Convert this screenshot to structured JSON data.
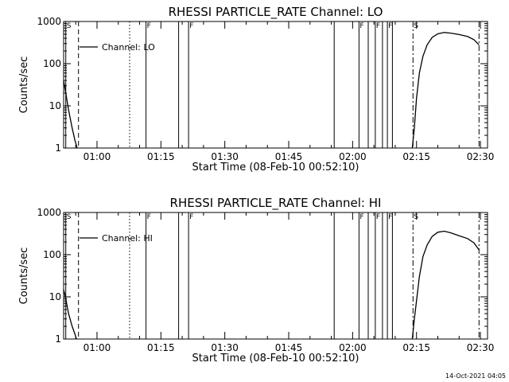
{
  "timestamp": "14-Oct-2021 04:05",
  "chart_data": [
    {
      "type": "line",
      "title": "RHESSI PARTICLE_RATE Channel: LO",
      "xlabel": "Start Time (08-Feb-10 00:52:10)",
      "ylabel": "Counts/sec",
      "y_scale": "log",
      "ylim": [
        1,
        1000
      ],
      "y_ticks": [
        1,
        10,
        100,
        1000
      ],
      "y_tick_labels": [
        "1",
        "10",
        "100",
        "1000"
      ],
      "x_range": [
        "00:52:10",
        "02:31:40"
      ],
      "x_ticks": [
        "01:00",
        "01:15",
        "01:30",
        "01:45",
        "02:00",
        "02:15",
        "02:30"
      ],
      "legend": {
        "label": "Channel: LO",
        "placement": "top-left"
      },
      "series": [
        {
          "name": "Channel: LO",
          "segments": [
            [
              [
                "00:52:10",
                40
              ],
              [
                "00:52:40",
                20
              ],
              [
                "00:53:20",
                8
              ],
              [
                "00:54:10",
                3
              ],
              [
                "00:54:50",
                1.5
              ],
              [
                "00:55:20",
                1
              ]
            ],
            [
              [
                "02:14:00",
                1
              ],
              [
                "02:14:30",
                3
              ],
              [
                "02:15:00",
                15
              ],
              [
                "02:15:40",
                60
              ],
              [
                "02:16:30",
                150
              ],
              [
                "02:17:30",
                280
              ],
              [
                "02:18:40",
                420
              ],
              [
                "02:20:00",
                510
              ],
              [
                "02:21:30",
                550
              ],
              [
                "02:23:00",
                530
              ],
              [
                "02:25:00",
                490
              ],
              [
                "02:27:00",
                440
              ],
              [
                "02:28:30",
                370
              ],
              [
                "02:29:40",
                280
              ]
            ]
          ]
        }
      ],
      "markers": [
        {
          "time": "00:52:40",
          "style": "solid",
          "label": "S"
        },
        {
          "time": "00:55:40",
          "style": "dashed",
          "label": ""
        },
        {
          "time": "01:07:40",
          "style": "dotted",
          "label": ""
        },
        {
          "time": "01:11:30",
          "style": "solid",
          "label": "F"
        },
        {
          "time": "01:19:10",
          "style": "solid",
          "label": ""
        },
        {
          "time": "01:21:30",
          "style": "solid",
          "label": "F"
        },
        {
          "time": "01:55:40",
          "style": "solid",
          "label": ""
        },
        {
          "time": "02:01:30",
          "style": "solid",
          "label": "F"
        },
        {
          "time": "02:03:40",
          "style": "solid",
          "label": ""
        },
        {
          "time": "02:05:20",
          "style": "solid",
          "label": "F"
        },
        {
          "time": "02:07:00",
          "style": "solid",
          "label": ""
        },
        {
          "time": "02:08:10",
          "style": "solid",
          "label": "F"
        },
        {
          "time": "02:09:20",
          "style": "solid",
          "label": ""
        },
        {
          "time": "02:14:10",
          "style": "dashdot",
          "label": "S"
        },
        {
          "time": "02:29:40",
          "style": "dashdot",
          "label": ""
        }
      ]
    },
    {
      "type": "line",
      "title": "RHESSI PARTICLE_RATE Channel: HI",
      "xlabel": "Start Time (08-Feb-10 00:52:10)",
      "ylabel": "Counts/sec",
      "y_scale": "log",
      "ylim": [
        1,
        1000
      ],
      "y_ticks": [
        1,
        10,
        100,
        1000
      ],
      "y_tick_labels": [
        "1",
        "10",
        "100",
        "1000"
      ],
      "x_range": [
        "00:52:10",
        "02:31:40"
      ],
      "x_ticks": [
        "01:00",
        "01:15",
        "01:30",
        "01:45",
        "02:00",
        "02:15",
        "02:30"
      ],
      "legend": {
        "label": "Channel: HI",
        "placement": "top-left"
      },
      "series": [
        {
          "name": "Channel: HI",
          "segments": [
            [
              [
                "00:52:10",
                15
              ],
              [
                "00:52:40",
                9
              ],
              [
                "00:53:20",
                4
              ],
              [
                "00:54:10",
                2
              ],
              [
                "00:54:50",
                1.3
              ],
              [
                "00:55:10",
                1
              ]
            ],
            [
              [
                "02:14:00",
                1
              ],
              [
                "02:14:30",
                3
              ],
              [
                "02:15:00",
                8
              ],
              [
                "02:15:40",
                30
              ],
              [
                "02:16:30",
                90
              ],
              [
                "02:17:30",
                170
              ],
              [
                "02:18:40",
                270
              ],
              [
                "02:20:00",
                340
              ],
              [
                "02:21:30",
                360
              ],
              [
                "02:23:00",
                330
              ],
              [
                "02:25:00",
                280
              ],
              [
                "02:27:00",
                240
              ],
              [
                "02:28:30",
                190
              ],
              [
                "02:29:40",
                130
              ]
            ]
          ]
        }
      ],
      "markers": [
        {
          "time": "00:52:40",
          "style": "solid",
          "label": "S"
        },
        {
          "time": "00:55:40",
          "style": "dashed",
          "label": ""
        },
        {
          "time": "01:07:40",
          "style": "dotted",
          "label": ""
        },
        {
          "time": "01:11:30",
          "style": "solid",
          "label": "F"
        },
        {
          "time": "01:19:10",
          "style": "solid",
          "label": ""
        },
        {
          "time": "01:21:30",
          "style": "solid",
          "label": "F"
        },
        {
          "time": "01:55:40",
          "style": "solid",
          "label": ""
        },
        {
          "time": "02:01:30",
          "style": "solid",
          "label": "F"
        },
        {
          "time": "02:03:40",
          "style": "solid",
          "label": ""
        },
        {
          "time": "02:05:20",
          "style": "solid",
          "label": "F"
        },
        {
          "time": "02:07:00",
          "style": "solid",
          "label": ""
        },
        {
          "time": "02:08:10",
          "style": "solid",
          "label": "F"
        },
        {
          "time": "02:09:20",
          "style": "solid",
          "label": ""
        },
        {
          "time": "02:14:10",
          "style": "dashdot",
          "label": "S"
        },
        {
          "time": "02:29:40",
          "style": "dashdot",
          "label": ""
        }
      ]
    }
  ]
}
